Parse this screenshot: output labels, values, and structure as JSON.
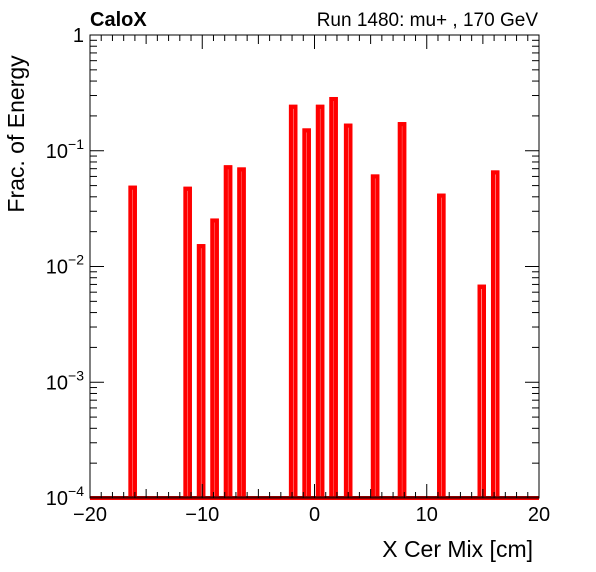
{
  "header": {
    "brand": "CaloX",
    "run_info": "Run 1480: mu+ , 170 GeV"
  },
  "chart_data": {
    "type": "bar",
    "title": "",
    "xlabel": "X Cer Mix [cm]",
    "ylabel": "Frac. of Energy",
    "xlim": [
      -20,
      20
    ],
    "ylim": [
      0.0001,
      1
    ],
    "yscale": "log",
    "grid": false,
    "x_ticks": [
      -20,
      -10,
      0,
      10,
      20
    ],
    "x_tick_labels": [
      "−20",
      "−10",
      "0",
      "10",
      "20"
    ],
    "y_tick_labels": [
      {
        "base": "1",
        "exp": ""
      },
      {
        "base": "10",
        "exp": "−1"
      },
      {
        "base": "10",
        "exp": "−2"
      },
      {
        "base": "10",
        "exp": "−3"
      },
      {
        "base": "10",
        "exp": "−4"
      }
    ],
    "bin_width": 0.4,
    "series": [
      {
        "color": "#ff0000",
        "x": [
          -16.2,
          -11.3,
          -10.1,
          -8.9,
          -7.7,
          -6.5,
          -1.9,
          -0.7,
          0.5,
          1.7,
          3.0,
          5.4,
          7.8,
          11.3,
          14.9,
          16.1
        ],
        "values": [
          0.048,
          0.047,
          0.015,
          0.025,
          0.072,
          0.069,
          0.24,
          0.15,
          0.24,
          0.28,
          0.165,
          0.06,
          0.17,
          0.041,
          0.0067,
          0.065
        ]
      }
    ]
  }
}
